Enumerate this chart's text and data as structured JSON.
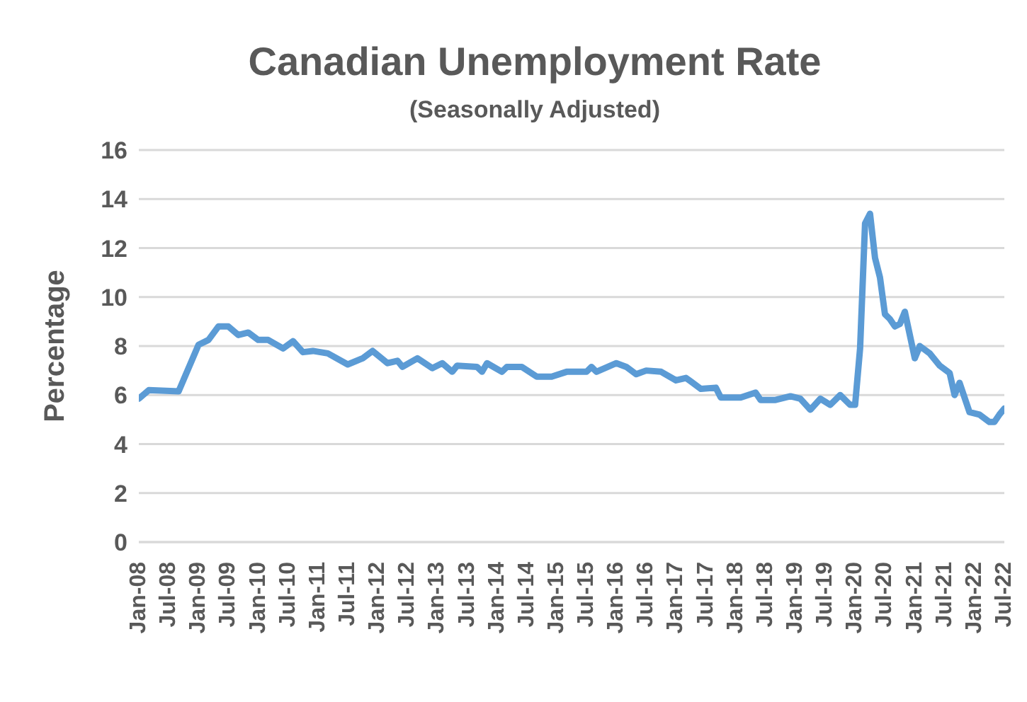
{
  "chart_data": {
    "type": "line",
    "title": "Canadian Unemployment Rate",
    "subtitle": "(Seasonally Adjusted)",
    "ylabel": "Percentage",
    "x": [
      "2008-01",
      "2008-03",
      "2008-09",
      "2009-01",
      "2009-03",
      "2009-05",
      "2009-07",
      "2009-09",
      "2009-11",
      "2010-01",
      "2010-03",
      "2010-06",
      "2010-08",
      "2010-10",
      "2010-12",
      "2011-03",
      "2011-07",
      "2011-10",
      "2011-12",
      "2012-03",
      "2012-05",
      "2012-06",
      "2012-09",
      "2012-12",
      "2013-02",
      "2013-04",
      "2013-05",
      "2013-09",
      "2013-10",
      "2013-11",
      "2014-02",
      "2014-03",
      "2014-06",
      "2014-09",
      "2014-12",
      "2015-03",
      "2015-07",
      "2015-08",
      "2015-09",
      "2016-01",
      "2016-03",
      "2016-05",
      "2016-07",
      "2016-10",
      "2017-01",
      "2017-03",
      "2017-04",
      "2017-06",
      "2017-09",
      "2017-10",
      "2018-02",
      "2018-05",
      "2018-06",
      "2018-09",
      "2018-12",
      "2019-02",
      "2019-04",
      "2019-06",
      "2019-08",
      "2019-10",
      "2019-12",
      "2020-01",
      "2020-02",
      "2020-03",
      "2020-04",
      "2020-05",
      "2020-06",
      "2020-07",
      "2020-08",
      "2020-09",
      "2020-10",
      "2020-11",
      "2021-01",
      "2021-02",
      "2021-04",
      "2021-06",
      "2021-08",
      "2021-09",
      "2021-10",
      "2021-12",
      "2022-02",
      "2022-04",
      "2022-05",
      "2022-06",
      "2022-07"
    ],
    "series": [
      {
        "color": "#5b9bd5",
        "values": [
          5.85,
          6.2,
          6.15,
          8.05,
          8.25,
          8.8,
          8.8,
          8.45,
          8.55,
          8.25,
          8.25,
          7.9,
          8.2,
          7.75,
          7.8,
          7.7,
          7.25,
          7.5,
          7.8,
          7.3,
          7.4,
          7.15,
          7.5,
          7.1,
          7.3,
          6.95,
          7.2,
          7.15,
          6.95,
          7.3,
          6.95,
          7.15,
          7.15,
          6.75,
          6.75,
          6.95,
          6.95,
          7.15,
          6.95,
          7.3,
          7.15,
          6.85,
          7.0,
          6.95,
          6.6,
          6.7,
          6.55,
          6.25,
          6.3,
          5.9,
          5.9,
          6.1,
          5.8,
          5.8,
          5.95,
          5.85,
          5.4,
          5.85,
          5.6,
          6.0,
          5.6,
          5.6,
          7.9,
          13.0,
          13.4,
          11.6,
          10.8,
          9.3,
          9.1,
          8.8,
          8.9,
          9.4,
          7.5,
          8.0,
          7.7,
          7.2,
          6.9,
          6.0,
          6.5,
          5.3,
          5.2,
          4.9,
          4.9,
          5.2,
          5.45
        ]
      }
    ],
    "xlim": [
      "2008-01",
      "2022-07"
    ],
    "xticks": [
      {
        "value": "2008-01",
        "label": "Jan-08"
      },
      {
        "value": "2008-07",
        "label": "Jul-08"
      },
      {
        "value": "2009-01",
        "label": "Jan-09"
      },
      {
        "value": "2009-07",
        "label": "Jul-09"
      },
      {
        "value": "2010-01",
        "label": "Jan-10"
      },
      {
        "value": "2010-07",
        "label": "Jul-10"
      },
      {
        "value": "2011-01",
        "label": "Jan-11"
      },
      {
        "value": "2011-07",
        "label": "Jul-11"
      },
      {
        "value": "2012-01",
        "label": "Jan-12"
      },
      {
        "value": "2012-07",
        "label": "Jul-12"
      },
      {
        "value": "2013-01",
        "label": "Jan-13"
      },
      {
        "value": "2013-07",
        "label": "Jul-13"
      },
      {
        "value": "2014-01",
        "label": "Jan-14"
      },
      {
        "value": "2014-07",
        "label": "Jul-14"
      },
      {
        "value": "2015-01",
        "label": "Jan-15"
      },
      {
        "value": "2015-07",
        "label": "Jul-15"
      },
      {
        "value": "2016-01",
        "label": "Jan-16"
      },
      {
        "value": "2016-07",
        "label": "Jul-16"
      },
      {
        "value": "2017-01",
        "label": "Jan-17"
      },
      {
        "value": "2017-07",
        "label": "Jul-17"
      },
      {
        "value": "2018-01",
        "label": "Jan-18"
      },
      {
        "value": "2018-07",
        "label": "Jul-18"
      },
      {
        "value": "2019-01",
        "label": "Jan-19"
      },
      {
        "value": "2019-07",
        "label": "Jul-19"
      },
      {
        "value": "2020-01",
        "label": "Jan-20"
      },
      {
        "value": "2020-07",
        "label": "Jul-20"
      },
      {
        "value": "2021-01",
        "label": "Jan-21"
      },
      {
        "value": "2021-07",
        "label": "Jul-21"
      },
      {
        "value": "2022-01",
        "label": "Jan-22"
      },
      {
        "value": "2022-07",
        "label": "Jul-22"
      }
    ],
    "ylim": [
      0,
      16
    ],
    "yticks": [
      0,
      2,
      4,
      6,
      8,
      10,
      12,
      14,
      16
    ],
    "grid": "y",
    "legend": false,
    "marker": "none",
    "line_style": "solid"
  }
}
